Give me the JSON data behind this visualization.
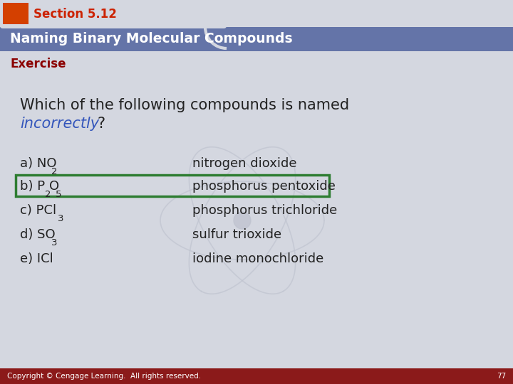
{
  "section_label": "Section 5.12",
  "title": "Naming Binary Molecular Compounds",
  "exercise_label": "Exercise",
  "question_line1": "Which of the following compounds is named",
  "question_word_blue": "incorrectly",
  "question_line2_rest": "?",
  "footer": "Copyright © Cengage Learning.  All rights reserved.",
  "page_num": "77",
  "bg_main": "#d4d7e0",
  "title_bar_color": "#6474a8",
  "section_tab_color": "#d44000",
  "section_tab_bg": "#d4d7e0",
  "exercise_color": "#8b0000",
  "blue_word_color": "#3355bb",
  "highlight_box_color": "#2e7d32",
  "footer_bar_color": "#8b1a1a",
  "watermark_color": "#c0c4d0",
  "text_color": "#222222"
}
